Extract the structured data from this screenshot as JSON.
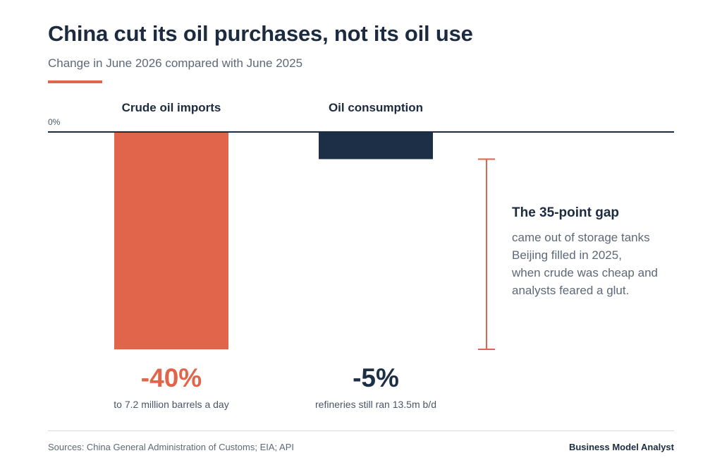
{
  "header": {
    "title": "China cut its oil purchases, not its oil use",
    "subtitle": "Change in June 2026 compared with June 2025"
  },
  "colors": {
    "accent": "#e0654a",
    "dark": "#1c2f47",
    "axis": "#1c2b3f"
  },
  "chart_data": {
    "type": "bar",
    "categories": [
      "Crude oil imports",
      "Oil consumption"
    ],
    "values": [
      -40,
      -5
    ],
    "value_labels": [
      "-40%",
      "-5%"
    ],
    "value_notes": [
      "to 7.2 million barrels a day",
      "refineries still ran 13.5m b/d"
    ],
    "bar_colors": [
      "#e0654a",
      "#1c2f47"
    ],
    "ylim": [
      -40,
      0
    ],
    "zero_label": "0%",
    "annotation": {
      "title": "The 35-point gap",
      "lines": [
        "came out of storage tanks",
        "Beijing filled in 2025,",
        "when crude was cheap and",
        "analysts feared a glut."
      ],
      "from_value": -5,
      "to_value": -40
    }
  },
  "footer": {
    "source": "Sources: China General Administration of Customs; EIA; API",
    "brand": "Business Model Analyst"
  }
}
